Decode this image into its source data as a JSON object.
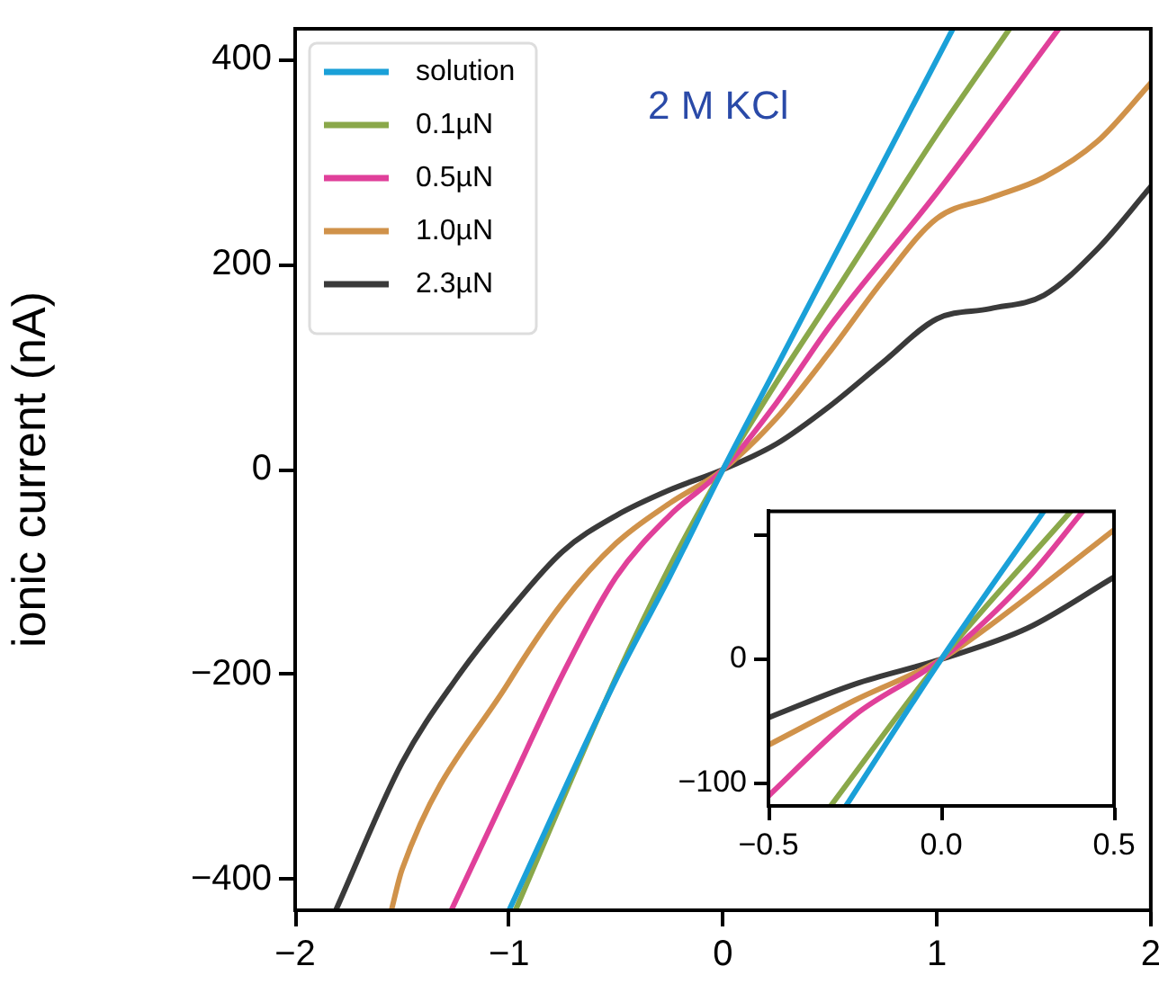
{
  "chart_data": [
    {
      "type": "line",
      "ylabel": "ionic current (nA)",
      "annotations": [
        "2 M KCl"
      ],
      "xlim": [
        -2,
        2
      ],
      "xticks": [
        -2,
        -1,
        0,
        1,
        2
      ],
      "ylim": [
        -430,
        430
      ],
      "yticks": [
        -400,
        -200,
        0,
        200,
        400
      ],
      "grid": false,
      "legend": "top left",
      "marker": "none",
      "line_style": "solid",
      "series": [
        {
          "name": "solution",
          "color": "#1aa0d8",
          "x": [
            -1.0,
            -0.5,
            -0.25,
            0,
            0.25,
            0.5,
            1.075
          ],
          "values": [
            -430,
            -205,
            -105,
            0,
            100,
            200,
            430
          ]
        },
        {
          "name": "0.1µN",
          "color": "#8aa84a",
          "x": [
            -0.97,
            -0.5,
            -0.25,
            0,
            0.25,
            0.5,
            1,
            1.34
          ],
          "values": [
            -430,
            -203,
            -95,
            0,
            85,
            165,
            327,
            430
          ]
        },
        {
          "name": "0.5µN",
          "color": "#e0409a",
          "x": [
            -1.27,
            -1,
            -0.75,
            -0.5,
            -0.25,
            0,
            0.25,
            0.5,
            1,
            1.57
          ],
          "values": [
            -430,
            -310,
            -200,
            -105,
            -45,
            0,
            65,
            140,
            270,
            430
          ]
        },
        {
          "name": "1.0µN",
          "color": "#d0924a",
          "x": [
            -1.55,
            -1.5,
            -1,
            -0.75,
            -0.5,
            -0.25,
            0,
            0.25,
            0.5,
            0.75,
            1,
            1.25,
            1.5,
            1.75,
            2
          ],
          "values": [
            -430,
            -390,
            -207,
            -130,
            -72,
            -33,
            0,
            50,
            115,
            185,
            245,
            265,
            285,
            320,
            377
          ]
        },
        {
          "name": "2.3µN",
          "color": "#3a3a3a",
          "x": [
            -1.81,
            -1.5,
            -1.25,
            -1,
            -0.75,
            -0.5,
            -0.25,
            0,
            0.25,
            0.5,
            0.75,
            1,
            1.25,
            1.5,
            1.75,
            2
          ],
          "values": [
            -430,
            -286,
            -205,
            -138,
            -80,
            -45,
            -20,
            0,
            25,
            62,
            105,
            147,
            157,
            170,
            215,
            276
          ]
        }
      ]
    },
    {
      "type": "line",
      "xlim": [
        -0.5,
        0.5
      ],
      "xticks": [
        {
          "value": -0.5,
          "label": "−0.5"
        },
        {
          "value": 0,
          "label": "0.0"
        },
        0.5
      ],
      "ylim": [
        -118,
        119
      ],
      "yticks": [
        {
          "value": -100,
          "label": "−100"
        },
        0,
        {
          "value": 100,
          "label": null
        }
      ],
      "grid": false,
      "marker": "none",
      "line_style": "solid",
      "series": [
        {
          "color": "#1aa0d8",
          "x": [
            -0.276,
            0,
            0.297
          ],
          "values": [
            -118,
            0,
            119
          ]
        },
        {
          "color": "#8aa84a",
          "x": [
            -0.32,
            0,
            0.375
          ],
          "values": [
            -118,
            0,
            119
          ]
        },
        {
          "color": "#e0409a",
          "x": [
            -0.5,
            -0.25,
            0,
            0.25,
            0.41
          ],
          "values": [
            -110,
            -45,
            0,
            65,
            119
          ]
        },
        {
          "color": "#d0924a",
          "x": [
            -0.5,
            -0.25,
            0,
            0.25,
            0.5
          ],
          "values": [
            -69,
            -33,
            0,
            50,
            104
          ]
        },
        {
          "color": "#3a3a3a",
          "x": [
            -0.5,
            -0.25,
            0,
            0.25,
            0.5
          ],
          "values": [
            -47,
            -20,
            0,
            25,
            66
          ]
        }
      ]
    }
  ]
}
